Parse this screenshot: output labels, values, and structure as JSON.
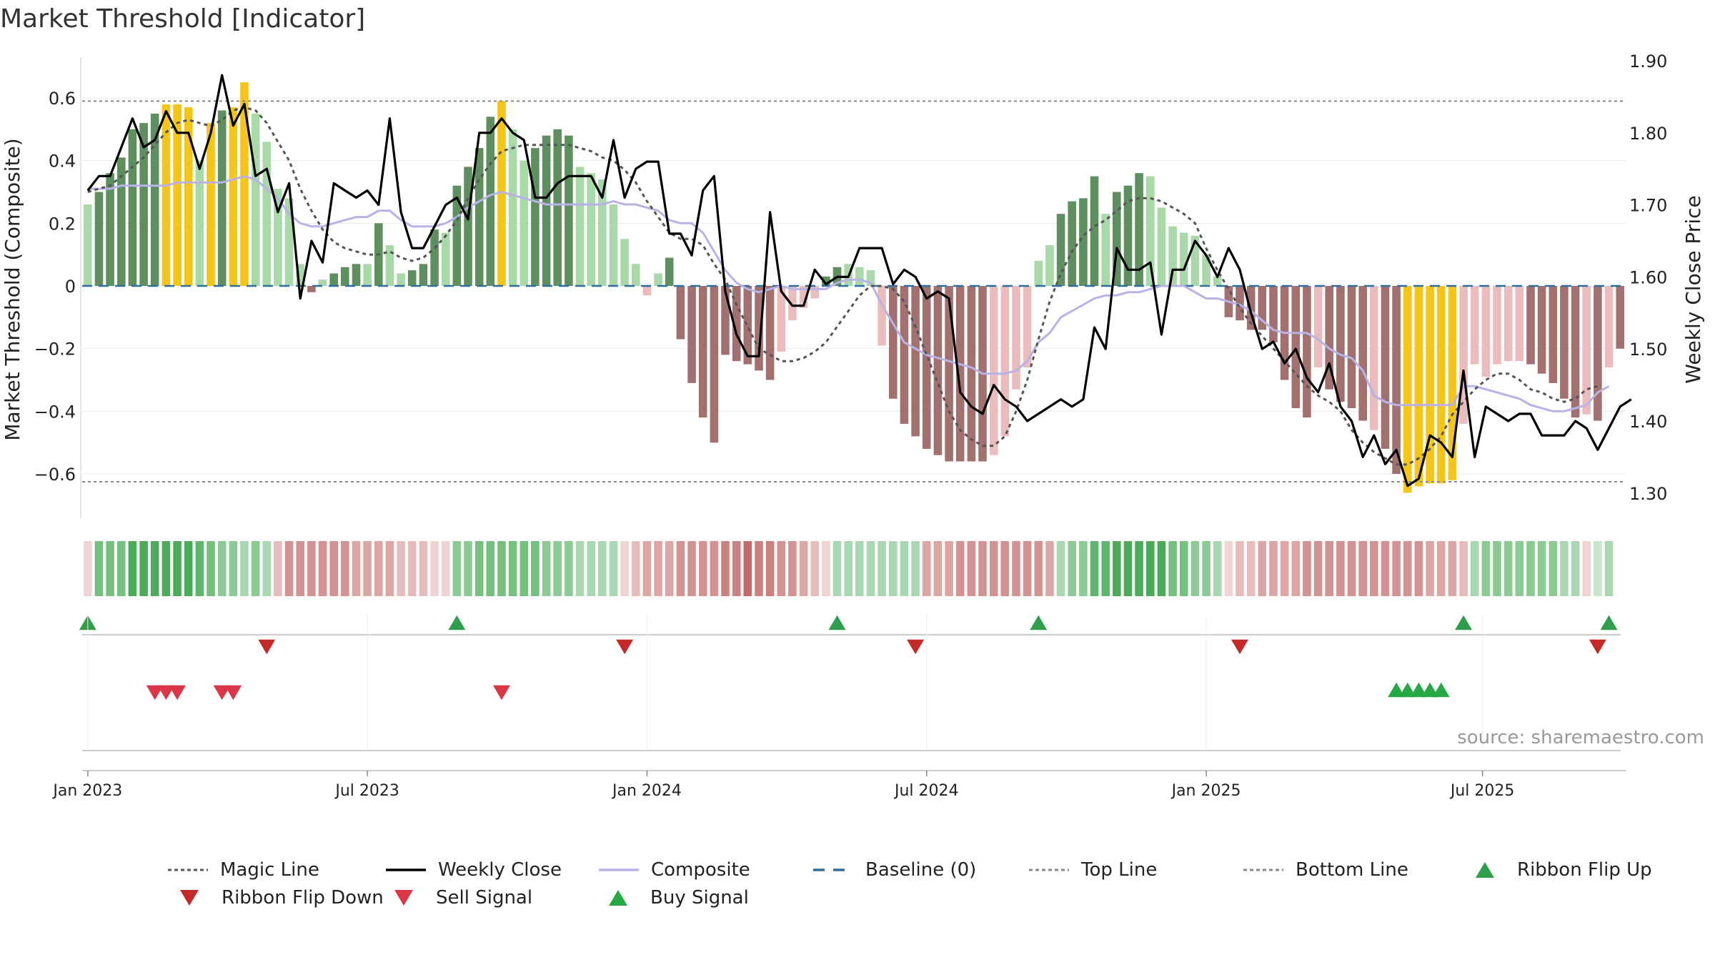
{
  "title": "Market Threshold [Indicator]",
  "source": "source: sharemaestro.com",
  "chart_data": {
    "type": "bar",
    "title": "Market Threshold [Indicator]",
    "ylabel": "Market Threshold (Composite)",
    "y2label": "Weekly Close Price",
    "ylim": [
      -0.73,
      0.73
    ],
    "y2lim": [
      1.27,
      1.905
    ],
    "yticks": [
      -0.6,
      -0.4,
      -0.2,
      0,
      0.2,
      0.4,
      0.6
    ],
    "ytick_labels": [
      "−0.6",
      "−0.4",
      "−0.2",
      "0",
      "0.2",
      "0.4",
      "0.6"
    ],
    "y2ticks": [
      1.3,
      1.4,
      1.5,
      1.6,
      1.7,
      1.8,
      1.9
    ],
    "y2tick_labels": [
      "1.30",
      "1.40",
      "1.50",
      "1.60",
      "1.70",
      "1.80",
      "1.90"
    ],
    "xticks": [
      "Jan 2023",
      "Jul 2023",
      "Jan 2024",
      "Jul 2024",
      "Jan 2025",
      "Jul 2025"
    ],
    "top_line": 0.59,
    "bottom_line": -0.625,
    "baseline": 0,
    "composite_bars": [
      0.26,
      0.3,
      0.36,
      0.41,
      0.5,
      0.52,
      0.55,
      0.58,
      0.58,
      0.57,
      0.4,
      0.52,
      0.56,
      0.57,
      0.65,
      0.55,
      0.46,
      0.31,
      0.28,
      0.07,
      -0.02,
      0.02,
      0.04,
      0.06,
      0.07,
      0.07,
      0.2,
      0.13,
      0.04,
      0.05,
      0.07,
      0.18,
      0.17,
      0.32,
      0.38,
      0.44,
      0.54,
      0.59,
      0.5,
      0.4,
      0.44,
      0.48,
      0.5,
      0.48,
      0.38,
      0.36,
      0.34,
      0.26,
      0.15,
      0.07,
      -0.03,
      0.04,
      0.09,
      -0.17,
      -0.31,
      -0.42,
      -0.5,
      -0.22,
      -0.24,
      -0.25,
      -0.27,
      -0.3,
      -0.21,
      -0.11,
      -0.07,
      -0.04,
      0.03,
      0.06,
      0.07,
      0.06,
      0.05,
      -0.19,
      -0.36,
      -0.44,
      -0.48,
      -0.52,
      -0.54,
      -0.56,
      -0.56,
      -0.56,
      -0.56,
      -0.54,
      -0.48,
      -0.33,
      -0.26,
      0.08,
      0.13,
      0.23,
      0.27,
      0.28,
      0.35,
      0.23,
      0.3,
      0.32,
      0.36,
      0.35,
      0.25,
      0.19,
      0.17,
      0.16,
      0.1,
      0.03,
      -0.1,
      -0.11,
      -0.14,
      -0.14,
      -0.18,
      -0.3,
      -0.39,
      -0.42,
      -0.26,
      -0.33,
      -0.37,
      -0.39,
      -0.43,
      -0.46,
      -0.52,
      -0.6,
      -0.66,
      -0.64,
      -0.63,
      -0.63,
      -0.62,
      -0.44,
      -0.25,
      -0.29,
      -0.25,
      -0.24,
      -0.24,
      -0.25,
      -0.28,
      -0.31,
      -0.36,
      -0.42,
      -0.41,
      -0.43,
      -0.26,
      -0.2
    ],
    "bar_state": [
      "lg",
      "dg",
      "dg",
      "dg",
      "dg",
      "dg",
      "dg",
      "y",
      "y",
      "y",
      "lg",
      "y",
      "dg",
      "y",
      "y",
      "lg",
      "lg",
      "lg",
      "lg",
      "lg",
      "dr",
      "lg",
      "dg",
      "dg",
      "dg",
      "lg",
      "dg",
      "lg",
      "lg",
      "dg",
      "dg",
      "dg",
      "lg",
      "dg",
      "dg",
      "dg",
      "dg",
      "y",
      "lg",
      "lg",
      "dg",
      "dg",
      "dg",
      "dg",
      "lg",
      "lg",
      "lg",
      "lg",
      "lg",
      "lg",
      "lr",
      "lg",
      "dg",
      "dr",
      "dr",
      "dr",
      "dr",
      "dr",
      "dr",
      "dr",
      "dr",
      "dr",
      "lr",
      "lr",
      "lr",
      "lr",
      "dg",
      "dg",
      "lg",
      "lg",
      "lg",
      "lr",
      "dr",
      "dr",
      "dr",
      "dr",
      "dr",
      "dr",
      "dr",
      "dr",
      "dr",
      "lr",
      "lr",
      "lr",
      "lr",
      "lg",
      "lg",
      "dg",
      "dg",
      "dg",
      "dg",
      "lg",
      "dg",
      "dg",
      "dg",
      "lg",
      "lg",
      "lg",
      "lg",
      "lg",
      "lg",
      "lg",
      "dr",
      "dr",
      "dr",
      "dr",
      "dr",
      "dr",
      "dr",
      "dr",
      "lr",
      "dr",
      "dr",
      "dr",
      "dr",
      "lr",
      "dr",
      "dr",
      "y",
      "y",
      "y",
      "y",
      "y",
      "lr",
      "lr",
      "lr",
      "lr",
      "lr",
      "lr",
      "dr",
      "dr",
      "dr",
      "dr",
      "dr",
      "lr",
      "dr",
      "lr",
      "dr"
    ],
    "weekly_close": [
      1.72,
      1.74,
      1.74,
      1.78,
      1.82,
      1.78,
      1.79,
      1.83,
      1.8,
      1.8,
      1.75,
      1.8,
      1.88,
      1.81,
      1.84,
      1.74,
      1.75,
      1.69,
      1.73,
      1.57,
      1.65,
      1.62,
      1.73,
      1.72,
      1.71,
      1.72,
      1.7,
      1.82,
      1.69,
      1.64,
      1.64,
      1.67,
      1.7,
      1.71,
      1.68,
      1.8,
      1.8,
      1.82,
      1.8,
      1.79,
      1.71,
      1.71,
      1.73,
      1.74,
      1.74,
      1.74,
      1.71,
      1.79,
      1.71,
      1.75,
      1.76,
      1.76,
      1.66,
      1.66,
      1.63,
      1.72,
      1.74,
      1.58,
      1.52,
      1.49,
      1.49,
      1.69,
      1.58,
      1.56,
      1.56,
      1.61,
      1.59,
      1.6,
      1.6,
      1.64,
      1.64,
      1.64,
      1.59,
      1.61,
      1.6,
      1.57,
      1.58,
      1.57,
      1.44,
      1.42,
      1.41,
      1.45,
      1.43,
      1.42,
      1.4,
      1.41,
      1.42,
      1.43,
      1.42,
      1.43,
      1.53,
      1.5,
      1.64,
      1.61,
      1.61,
      1.62,
      1.52,
      1.61,
      1.61,
      1.65,
      1.63,
      1.6,
      1.64,
      1.61,
      1.55,
      1.5,
      1.51,
      1.48,
      1.5,
      1.46,
      1.44,
      1.48,
      1.42,
      1.4,
      1.35,
      1.38,
      1.34,
      1.36,
      1.31,
      1.32,
      1.38,
      1.37,
      1.35,
      1.47,
      1.35,
      1.42,
      1.41,
      1.4,
      1.41,
      1.41,
      1.38,
      1.38,
      1.38,
      1.4,
      1.39,
      1.36,
      1.39,
      1.42,
      1.43
    ],
    "composite_line": [
      0.31,
      0.31,
      0.31,
      0.32,
      0.32,
      0.32,
      0.32,
      0.32,
      0.33,
      0.33,
      0.33,
      0.33,
      0.33,
      0.34,
      0.35,
      0.34,
      0.31,
      0.28,
      0.23,
      0.2,
      0.19,
      0.19,
      0.2,
      0.21,
      0.22,
      0.22,
      0.24,
      0.24,
      0.21,
      0.19,
      0.19,
      0.19,
      0.2,
      0.22,
      0.25,
      0.27,
      0.29,
      0.3,
      0.29,
      0.28,
      0.27,
      0.26,
      0.26,
      0.26,
      0.26,
      0.26,
      0.26,
      0.27,
      0.26,
      0.26,
      0.25,
      0.24,
      0.21,
      0.2,
      0.2,
      0.17,
      0.11,
      0.05,
      0.01,
      -0.01,
      -0.02,
      -0.01,
      0.0,
      -0.01,
      -0.01,
      -0.01,
      -0.01,
      0.01,
      0.02,
      0.02,
      0.01,
      -0.06,
      -0.12,
      -0.18,
      -0.2,
      -0.22,
      -0.23,
      -0.24,
      -0.25,
      -0.26,
      -0.28,
      -0.28,
      -0.28,
      -0.27,
      -0.24,
      -0.18,
      -0.15,
      -0.1,
      -0.08,
      -0.06,
      -0.04,
      -0.03,
      -0.03,
      -0.02,
      -0.02,
      -0.01,
      0.0,
      0.0,
      0.0,
      -0.02,
      -0.04,
      -0.04,
      -0.05,
      -0.06,
      -0.08,
      -0.11,
      -0.14,
      -0.15,
      -0.15,
      -0.15,
      -0.17,
      -0.2,
      -0.22,
      -0.23,
      -0.27,
      -0.35,
      -0.37,
      -0.38,
      -0.38,
      -0.38,
      -0.38,
      -0.38,
      -0.38,
      -0.32,
      -0.32,
      -0.33,
      -0.34,
      -0.35,
      -0.36,
      -0.38,
      -0.39,
      -0.4,
      -0.4,
      -0.39,
      -0.38,
      -0.34,
      -0.32
    ],
    "magic_line": [
      0.3,
      0.31,
      0.32,
      0.35,
      0.38,
      0.41,
      0.45,
      0.49,
      0.52,
      0.53,
      0.52,
      0.51,
      0.53,
      0.56,
      0.57,
      0.56,
      0.52,
      0.46,
      0.4,
      0.31,
      0.24,
      0.18,
      0.14,
      0.12,
      0.11,
      0.1,
      0.1,
      0.11,
      0.09,
      0.08,
      0.09,
      0.12,
      0.16,
      0.21,
      0.28,
      0.34,
      0.39,
      0.43,
      0.44,
      0.45,
      0.45,
      0.45,
      0.45,
      0.45,
      0.44,
      0.43,
      0.41,
      0.4,
      0.37,
      0.33,
      0.27,
      0.22,
      0.17,
      0.15,
      0.15,
      0.13,
      0.07,
      0.02,
      -0.06,
      -0.13,
      -0.2,
      -0.22,
      -0.24,
      -0.24,
      -0.23,
      -0.21,
      -0.18,
      -0.13,
      -0.08,
      -0.03,
      0.0,
      0.0,
      -0.01,
      -0.05,
      -0.13,
      -0.22,
      -0.31,
      -0.4,
      -0.46,
      -0.49,
      -0.51,
      -0.51,
      -0.48,
      -0.4,
      -0.3,
      -0.17,
      -0.05,
      0.04,
      0.11,
      0.16,
      0.19,
      0.21,
      0.24,
      0.27,
      0.28,
      0.28,
      0.27,
      0.25,
      0.23,
      0.2,
      0.12,
      0.05,
      -0.01,
      -0.07,
      -0.12,
      -0.16,
      -0.2,
      -0.24,
      -0.28,
      -0.32,
      -0.35,
      -0.37,
      -0.4,
      -0.46,
      -0.5,
      -0.53,
      -0.55,
      -0.57,
      -0.57,
      -0.55,
      -0.52,
      -0.48,
      -0.41,
      -0.37,
      -0.33,
      -0.3,
      -0.28,
      -0.28,
      -0.3,
      -0.33,
      -0.34,
      -0.36,
      -0.37,
      -0.36,
      -0.33,
      -0.32
    ],
    "ribbon": [
      -1,
      4,
      4,
      4,
      6,
      6,
      6,
      6,
      6,
      6,
      5,
      4,
      3,
      3,
      2,
      3,
      2,
      -2,
      -4,
      -4,
      -4,
      -4,
      -4,
      -4,
      -3,
      -3,
      -3,
      -3,
      -2,
      -2,
      -2,
      -1,
      -1,
      3,
      3,
      4,
      4,
      4,
      4,
      4,
      4,
      3,
      3,
      3,
      2,
      2,
      2,
      2,
      -1,
      -2,
      -3,
      -3,
      -3,
      -4,
      -4,
      -4,
      -4,
      -5,
      -5,
      -6,
      -5,
      -5,
      -4,
      -4,
      -3,
      -2,
      -1,
      2,
      2,
      2,
      2,
      2,
      2,
      2,
      2,
      -3,
      -3,
      -3,
      -4,
      -4,
      -4,
      -4,
      -4,
      -4,
      -4,
      -4,
      -3,
      2,
      3,
      3,
      5,
      5,
      6,
      6,
      6,
      6,
      6,
      4,
      4,
      3,
      3,
      2,
      -1,
      -2,
      -2,
      -3,
      -3,
      -3,
      -3,
      -4,
      -4,
      -4,
      -4,
      -4,
      -4,
      -4,
      -4,
      -4,
      -4,
      -4,
      -3,
      -3,
      -3,
      -2,
      2,
      3,
      3,
      3,
      3,
      3,
      3,
      3,
      2,
      2,
      -1,
      1,
      2
    ],
    "ribbon_flip_up": [
      0,
      33,
      67,
      85,
      123,
      136
    ],
    "ribbon_flip_down": [
      16,
      48,
      74,
      103,
      135
    ],
    "sell_signal": [
      6,
      7,
      8,
      12,
      13,
      37
    ],
    "buy_signal": [
      117,
      118,
      119,
      120,
      121
    ],
    "legend": [
      "Magic Line",
      "Weekly Close",
      "Composite",
      "Baseline (0)",
      "Top Line",
      "Bottom Line",
      "Ribbon Flip Up",
      "Ribbon Flip Down",
      "Sell Signal",
      "Buy Signal"
    ],
    "colors": {
      "bar_dark_green": "#5e8f5e",
      "bar_light_green": "#a9d8a9",
      "bar_dark_red": "#a37070",
      "bar_light_red": "#ebbcbc",
      "bar_yellow": "#f5c518",
      "weekly_close": "#000000",
      "composite": "#b8b2e6",
      "magic_line": "#555555",
      "baseline": "#2e6e9e",
      "top_bottom_line": "#888888",
      "flip_up": "#2e9e4a",
      "flip_down": "#c62828",
      "sell": "#dc3545",
      "buy": "#28a745"
    }
  }
}
